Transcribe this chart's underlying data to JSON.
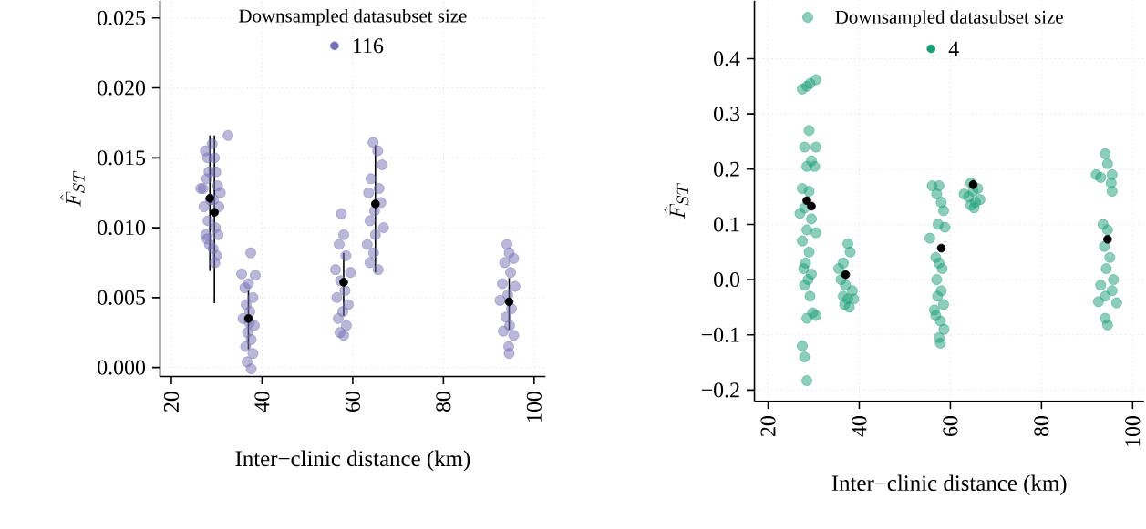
{
  "chart_data": [
    {
      "type": "scatter",
      "xlabel": "Inter−clinic distance (km)",
      "ylabel": "\\hat{F}_{ST}",
      "legend_title": "Downsampled datasubset size",
      "legend": "top",
      "grid": true,
      "marker": "circle",
      "xlim": [
        17.5,
        102.5
      ],
      "ylim": [
        -0.00065,
        0.02624
      ],
      "xticks": [
        20,
        40,
        60,
        80,
        100
      ],
      "yticks": [
        {
          "value": 0,
          "label": "0.000"
        },
        0.005,
        {
          "value": 0.01,
          "label": "0.010"
        },
        0.015,
        {
          "value": 0.02,
          "label": "0.020"
        },
        0.025
      ],
      "series": [
        {
          "name": "116",
          "color": "#7570b3",
          "x": [
            27.0,
            27.5,
            28.0,
            28.3,
            27.8,
            28.6,
            27.2,
            28.1,
            27.6,
            28.4,
            27.9,
            29.0,
            29.5,
            29.8,
            30.2,
            29.3,
            30.5,
            29.7,
            30.3,
            29.2,
            30.0,
            29.6,
            32.5,
            30.8,
            26.5,
            35.5,
            36.2,
            37.5,
            38.5,
            37.0,
            36.5,
            38.0,
            37.3,
            35.8,
            38.3,
            36.8,
            37.6,
            36.4,
            38.0,
            36.7,
            37.6,
            37.2,
            57.5,
            58.0,
            57.0,
            58.5,
            56.2,
            59.5,
            57.3,
            58.3,
            56.5,
            59.0,
            57.8,
            56.8,
            58.6,
            57.2,
            58.0,
            64.5,
            65.5,
            66.5,
            64.0,
            65.8,
            63.5,
            66.2,
            64.8,
            63.8,
            66.8,
            65.0,
            63.2,
            64.6,
            63.8,
            65.6,
            94.0,
            94.5,
            95.5,
            93.5,
            94.8,
            93.0,
            95.8,
            94.2,
            92.5,
            95.0,
            93.8,
            94.6,
            93.2,
            95.5,
            94.4,
            94.5
          ],
          "values": [
            0.0128,
            0.0155,
            0.015,
            0.014,
            0.0135,
            0.012,
            0.0115,
            0.0105,
            0.0095,
            0.0088,
            0.0092,
            0.016,
            0.015,
            0.014,
            0.013,
            0.012,
            0.0115,
            0.01,
            0.0095,
            0.0085,
            0.008,
            0.0075,
            0.0166,
            0.0125,
            0.0128,
            0.0067,
            0.0057,
            0.0082,
            0.0066,
            0.006,
            0.0045,
            0.005,
            0.004,
            0.0035,
            0.003,
            0.0025,
            0.002,
            0.0015,
            0.001,
            0.0004,
            -0.0001,
            0.0032,
            0.011,
            0.0095,
            0.0088,
            0.008,
            0.007,
            0.0068,
            0.0062,
            0.0055,
            0.005,
            0.0045,
            0.004,
            0.0035,
            0.003,
            0.0025,
            0.0023,
            0.0161,
            0.0155,
            0.0145,
            0.0135,
            0.0128,
            0.0125,
            0.0118,
            0.0112,
            0.0105,
            0.01,
            0.0095,
            0.0088,
            0.0082,
            0.0075,
            0.007,
            0.0088,
            0.0082,
            0.0078,
            0.0075,
            0.0068,
            0.006,
            0.0058,
            0.0052,
            0.0048,
            0.0042,
            0.0036,
            0.003,
            0.0026,
            0.0023,
            0.0015,
            0.001
          ]
        },
        {
          "color": "#000000",
          "x": [
            28.5,
            29.5,
            37.0,
            58.0,
            65.0,
            94.5
          ],
          "values": [
            0.0121,
            0.0111,
            0.0035,
            0.0061,
            0.0117,
            0.0047
          ],
          "errors": [
            [
              0.0069,
              0.0166
            ],
            [
              0.0046,
              0.0166
            ],
            [
              0.0013,
              0.0055
            ],
            [
              0.0037,
              0.0082
            ],
            [
              0.0068,
              0.0159
            ],
            [
              0.0027,
              0.0064
            ]
          ]
        }
      ]
    },
    {
      "type": "scatter",
      "xlabel": "Inter−clinic distance (km)",
      "ylabel": "\\hat{F}_{ST}",
      "legend_title": "Downsampled datasubset size",
      "legend": "top",
      "grid": true,
      "marker": "circle",
      "xlim": [
        17,
        102.5
      ],
      "ylim": [
        -0.22,
        0.505
      ],
      "xticks": [
        20,
        40,
        60,
        80,
        100
      ],
      "yticks": [
        {
          "value": -0.2,
          "label": "−0.2"
        },
        {
          "value": -0.1,
          "label": "−0.1"
        },
        {
          "value": 0,
          "label": "0.0"
        },
        0.1,
        0.2,
        0.3,
        0.4
      ],
      "series": [
        {
          "name": "4",
          "color": "#1b9e77",
          "x": [
            27.5,
            28.5,
            29.2,
            30.5,
            29.0,
            28.0,
            30.5,
            28.5,
            29.5,
            30.2,
            27.5,
            29.0,
            28.0,
            27.0,
            29.5,
            28.5,
            30.5,
            27.5,
            29.0,
            28.2,
            27.8,
            29.5,
            28.8,
            28.0,
            29.2,
            29.8,
            28.5,
            30.5,
            27.5,
            28.0,
            28.5,
            28.7,
            35.5,
            36.5,
            37.5,
            38.0,
            36.0,
            37.0,
            38.5,
            36.5,
            37.5,
            36.8,
            37.8,
            38.8,
            56.0,
            57.5,
            57.0,
            58.0,
            58.5,
            57.3,
            58.8,
            55.5,
            56.8,
            57.5,
            58.2,
            57.0,
            58.0,
            57.2,
            58.5,
            56.5,
            57.8,
            58.6,
            57.5,
            57.8,
            56.8,
            63.0,
            64.5,
            66.0,
            65.0,
            64.0,
            66.5,
            65.5,
            64.5,
            65.2,
            94.0,
            94.5,
            92.0,
            93.0,
            95.5,
            95.3,
            95.5,
            93.5,
            94.5,
            93.8,
            95.0,
            94.2,
            93.0,
            95.5,
            94.0,
            92.5,
            96.5,
            94.0,
            94.5,
            95.8
          ],
          "values": [
            0.345,
            0.35,
            0.355,
            0.362,
            0.27,
            0.24,
            0.24,
            0.205,
            0.215,
            0.205,
            0.165,
            0.16,
            0.13,
            0.12,
            0.11,
            0.09,
            0.085,
            0.07,
            0.05,
            0.03,
            0.02,
            0.01,
            0.0,
            -0.01,
            -0.03,
            -0.06,
            -0.07,
            -0.065,
            -0.12,
            -0.14,
            -0.183,
            0.475,
            0.02,
            0.03,
            0.065,
            0.05,
            0.0,
            -0.01,
            -0.02,
            -0.03,
            -0.035,
            -0.045,
            -0.05,
            -0.035,
            0.17,
            0.17,
            0.155,
            0.14,
            0.125,
            0.1,
            0.095,
            0.075,
            0.04,
            0.03,
            0.02,
            0.0,
            -0.02,
            -0.03,
            -0.045,
            -0.055,
            -0.075,
            -0.09,
            -0.105,
            -0.115,
            -0.065,
            0.155,
            0.175,
            0.165,
            0.16,
            0.15,
            0.145,
            0.14,
            0.135,
            0.13,
            0.228,
            0.21,
            0.19,
            0.185,
            0.19,
            0.175,
            0.16,
            0.1,
            0.09,
            0.06,
            0.04,
            0.02,
            -0.01,
            -0.02,
            -0.03,
            -0.04,
            -0.042,
            -0.07,
            -0.082,
            0.0
          ]
        },
        {
          "color": "#000000",
          "x": [
            28.5,
            29.5,
            37.0,
            58.0,
            65.0,
            94.5
          ],
          "values": [
            0.143,
            0.133,
            0.009,
            0.057,
            0.172,
            0.073
          ],
          "errors": [
            null,
            null,
            null,
            null,
            [
              0.163,
              0.181
            ],
            null
          ]
        }
      ]
    }
  ]
}
